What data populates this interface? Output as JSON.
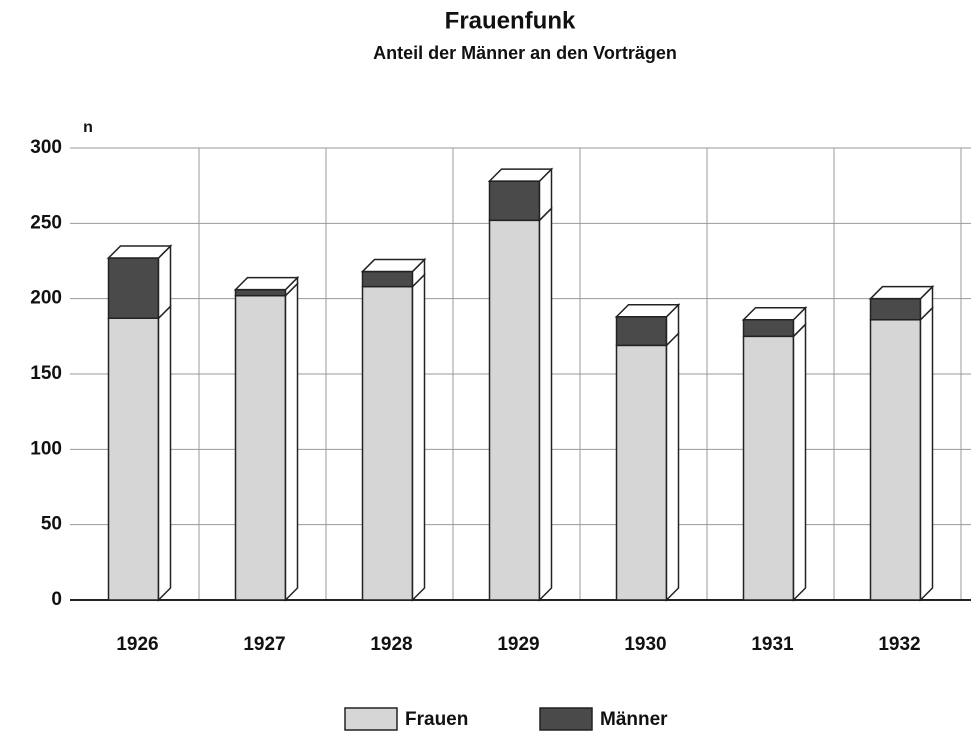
{
  "chart_data": {
    "type": "stacked-bar-3d",
    "title": "Frauenfunk",
    "subtitle": "Anteil der Männer an den Vorträgen",
    "y_label": "n",
    "categories": [
      "1926",
      "1927",
      "1928",
      "1929",
      "1930",
      "1931",
      "1932"
    ],
    "series": [
      {
        "name": "Frauen",
        "color": "#d6d6d6",
        "values": [
          187,
          202,
          208,
          252,
          169,
          175,
          186
        ]
      },
      {
        "name": "Männer",
        "color": "#4a4a4a",
        "values": [
          40,
          4,
          10,
          26,
          19,
          11,
          14
        ]
      }
    ],
    "ylim": [
      0,
      300
    ],
    "yticks": [
      0,
      50,
      100,
      150,
      200,
      250,
      300
    ],
    "grid": true,
    "legend": "bottom"
  }
}
